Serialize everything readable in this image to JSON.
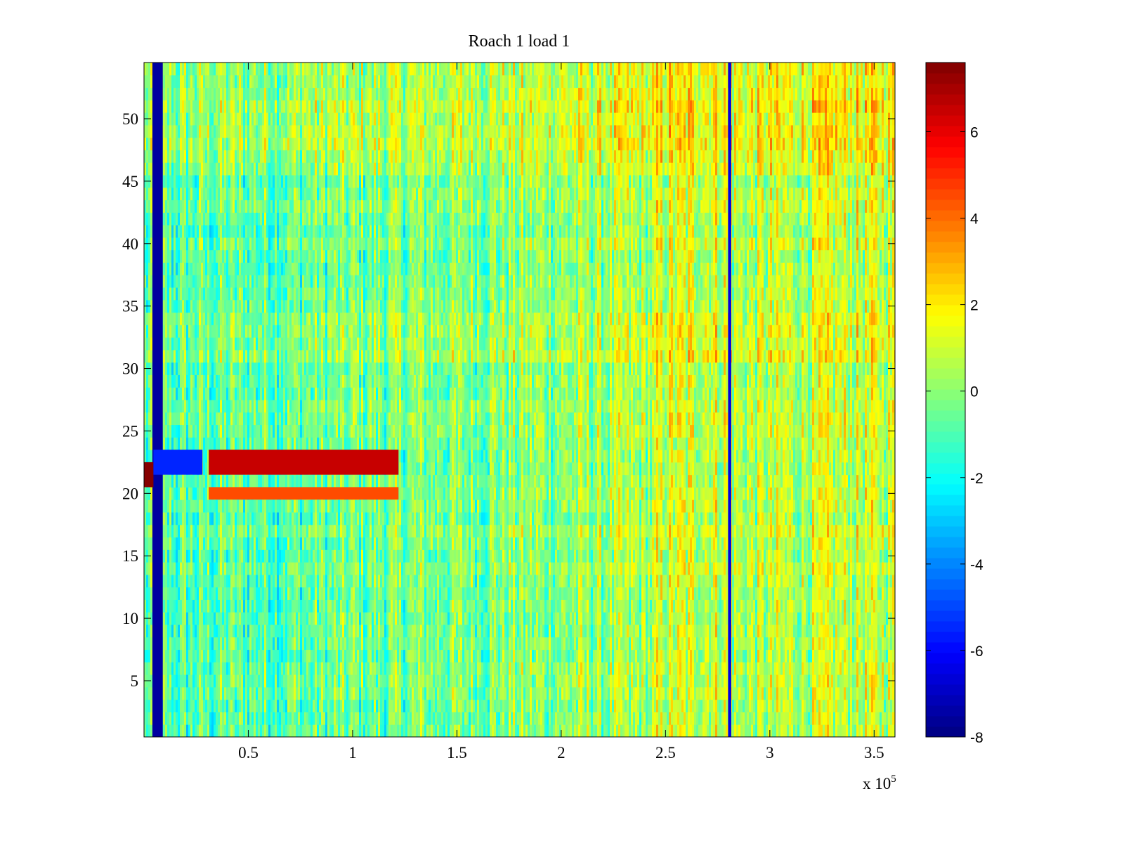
{
  "chart_data": {
    "type": "heatmap",
    "title": "Roach 1 load 1",
    "xlabel": "",
    "ylabel": "",
    "xlim": [
      0,
      360000
    ],
    "ylim": [
      0.5,
      54.5
    ],
    "x_ticks": [
      50000,
      100000,
      150000,
      200000,
      250000,
      300000,
      350000
    ],
    "x_tick_labels": [
      "0.5",
      "1",
      "1.5",
      "2",
      "2.5",
      "3",
      "3.5"
    ],
    "x_multiplier": {
      "base": "x 10",
      "exponent": "5"
    },
    "y_ticks": [
      5,
      10,
      15,
      20,
      25,
      30,
      35,
      40,
      45,
      50
    ],
    "y_tick_labels": [
      "5",
      "10",
      "15",
      "20",
      "25",
      "30",
      "35",
      "40",
      "45",
      "50"
    ],
    "rows": 54,
    "colorbar": {
      "colormap": "jet",
      "clim": [
        -8,
        7.6
      ],
      "ticks": [
        -8,
        -6,
        -4,
        -2,
        0,
        2,
        4,
        6
      ],
      "tick_labels": [
        "-8",
        "-6",
        "-4",
        "-2",
        "0",
        "2",
        "4",
        "6"
      ]
    },
    "features": [
      {
        "description": "column band",
        "x_range": [
          4000,
          9000
        ],
        "y_range": [
          0.5,
          54.5
        ],
        "value": -7.5
      },
      {
        "description": "column band",
        "x_range": [
          0,
          4500
        ],
        "y_range": [
          20.5,
          22.5
        ],
        "value": 7.5
      },
      {
        "description": "column band",
        "x_range": [
          4500,
          28000
        ],
        "y_range": [
          21.5,
          23.5
        ],
        "value": -5.5
      },
      {
        "description": "column band",
        "x_range": [
          31000,
          122000
        ],
        "y_range": [
          21.5,
          23.5
        ],
        "value": 6.5
      },
      {
        "description": "column band",
        "x_range": [
          31000,
          122000
        ],
        "y_range": [
          19.5,
          20.5
        ],
        "value": 4.5
      },
      {
        "description": "column band",
        "x_range": [
          280000,
          281500
        ],
        "y_range": [
          0.5,
          54.5
        ],
        "value": -6.5
      }
    ]
  }
}
